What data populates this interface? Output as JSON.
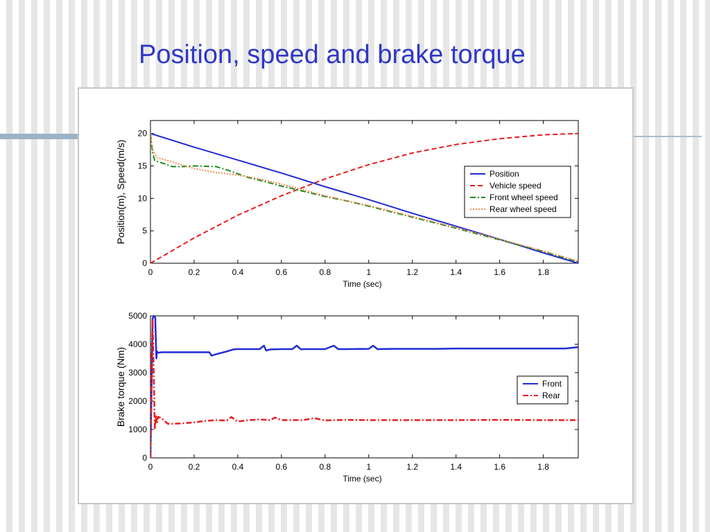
{
  "slide": {
    "title": "Position, speed and brake torque"
  },
  "chart_data": [
    {
      "type": "line",
      "title": "",
      "xlabel": "Time (sec)",
      "ylabel": "Position(m), Speed(m/s)",
      "xlim": [
        0,
        1.96
      ],
      "ylim": [
        0,
        22
      ],
      "xticks": [
        0,
        0.2,
        0.4,
        0.6,
        0.8,
        1,
        1.2,
        1.4,
        1.6,
        1.8
      ],
      "xtick_labels": [
        "0",
        "0.2",
        "0.4",
        "0.6",
        "0.8",
        "1",
        "1.2",
        "1.4",
        "1.6",
        "1.8"
      ],
      "yticks": [
        0,
        5,
        10,
        15,
        20
      ],
      "ytick_labels": [
        "0",
        "5",
        "10",
        "15",
        "20"
      ],
      "grid": false,
      "legend_position": "center-right",
      "series": [
        {
          "name": "Position",
          "color": "#1f2bd6",
          "dash": "solid",
          "x": [
            0,
            0.2,
            0.4,
            0.6,
            0.8,
            1.0,
            1.2,
            1.4,
            1.6,
            1.8,
            1.96
          ],
          "y": [
            20.0,
            17.9,
            15.9,
            13.9,
            11.8,
            9.8,
            7.7,
            5.7,
            3.7,
            1.6,
            0.0
          ]
        },
        {
          "name": "Vehicle speed",
          "color": "#e81c1c",
          "dash": "dashed",
          "x": [
            0,
            0.2,
            0.4,
            0.6,
            0.8,
            1.0,
            1.2,
            1.4,
            1.6,
            1.8,
            1.96
          ],
          "y": [
            0.0,
            3.9,
            7.4,
            10.4,
            13.0,
            15.2,
            17.0,
            18.3,
            19.2,
            19.8,
            20.0
          ]
        },
        {
          "name": "Front wheel speed",
          "color": "#1a8a1a",
          "dash": "dashdot",
          "x": [
            0,
            0.01,
            0.02,
            0.05,
            0.1,
            0.15,
            0.2,
            0.3,
            0.35,
            0.4,
            0.45,
            0.5,
            0.6,
            0.7,
            0.8,
            0.9,
            1.0,
            1.2,
            1.4,
            1.6,
            1.8,
            1.96
          ],
          "y": [
            20.0,
            17.0,
            15.8,
            15.5,
            14.9,
            14.9,
            15.0,
            14.9,
            14.4,
            13.8,
            13.2,
            12.8,
            11.9,
            11.1,
            10.3,
            9.6,
            8.8,
            7.1,
            5.4,
            3.6,
            1.8,
            0.2
          ]
        },
        {
          "name": "Rear wheel speed",
          "color": "#f08a4b",
          "dash": "dotted",
          "x": [
            0,
            0.01,
            0.03,
            0.1,
            0.2,
            0.3,
            0.4,
            0.5,
            0.6,
            0.7,
            0.8,
            0.9,
            1.0,
            1.2,
            1.4,
            1.6,
            1.8,
            1.96
          ],
          "y": [
            20.0,
            17.5,
            16.3,
            15.6,
            14.6,
            14.0,
            13.6,
            13.0,
            12.2,
            11.3,
            10.4,
            9.6,
            8.9,
            7.2,
            5.5,
            3.7,
            1.9,
            0.3
          ]
        }
      ]
    },
    {
      "type": "line",
      "title": "",
      "xlabel": "Time (sec)",
      "ylabel": "Brake torque (Nm)",
      "xlim": [
        0,
        1.96
      ],
      "ylim": [
        0,
        5000
      ],
      "xticks": [
        0,
        0.2,
        0.4,
        0.6,
        0.8,
        1,
        1.2,
        1.4,
        1.6,
        1.8
      ],
      "xtick_labels": [
        "0",
        "0.2",
        "0.4",
        "0.6",
        "0.8",
        "1",
        "1.2",
        "1.4",
        "1.6",
        "1.8"
      ],
      "yticks": [
        0,
        1000,
        2000,
        3000,
        4000,
        5000
      ],
      "ytick_labels": [
        "0",
        "1000",
        "2000",
        "3000",
        "4000",
        "5000"
      ],
      "grid": false,
      "legend_position": "center-right",
      "series": [
        {
          "name": "Front",
          "color": "#1f2bd6",
          "dash": "solid",
          "x": [
            0,
            0.005,
            0.01,
            0.015,
            0.022,
            0.027,
            0.03,
            0.035,
            0.05,
            0.1,
            0.2,
            0.27,
            0.28,
            0.3,
            0.35,
            0.38,
            0.4,
            0.45,
            0.5,
            0.52,
            0.53,
            0.55,
            0.6,
            0.65,
            0.67,
            0.69,
            0.7,
            0.75,
            0.8,
            0.84,
            0.86,
            0.9,
            1.0,
            1.02,
            1.04,
            1.1,
            1.2,
            1.3,
            1.4,
            1.5,
            1.6,
            1.7,
            1.8,
            1.9,
            1.96
          ],
          "y": [
            0,
            2500,
            4900,
            5000,
            4950,
            3500,
            3750,
            3700,
            3720,
            3720,
            3720,
            3720,
            3600,
            3650,
            3750,
            3820,
            3830,
            3830,
            3830,
            3950,
            3780,
            3820,
            3830,
            3830,
            3950,
            3820,
            3830,
            3830,
            3830,
            3950,
            3830,
            3830,
            3840,
            3950,
            3830,
            3840,
            3840,
            3840,
            3850,
            3850,
            3850,
            3850,
            3850,
            3850,
            3900
          ]
        },
        {
          "name": "Rear",
          "color": "#e81c1c",
          "dash": "dashdot",
          "x": [
            0,
            0.005,
            0.01,
            0.015,
            0.02,
            0.025,
            0.03,
            0.035,
            0.05,
            0.08,
            0.1,
            0.15,
            0.2,
            0.25,
            0.3,
            0.35,
            0.37,
            0.4,
            0.45,
            0.5,
            0.55,
            0.57,
            0.6,
            0.7,
            0.75,
            0.8,
            0.9,
            1.0,
            1.2,
            1.4,
            1.6,
            1.8,
            1.96
          ],
          "y": [
            0,
            3500,
            4900,
            3000,
            1000,
            1500,
            1200,
            1450,
            1400,
            1200,
            1200,
            1220,
            1250,
            1300,
            1330,
            1320,
            1440,
            1280,
            1330,
            1350,
            1330,
            1420,
            1330,
            1330,
            1400,
            1320,
            1340,
            1330,
            1330,
            1330,
            1340,
            1330,
            1330
          ]
        }
      ]
    }
  ]
}
